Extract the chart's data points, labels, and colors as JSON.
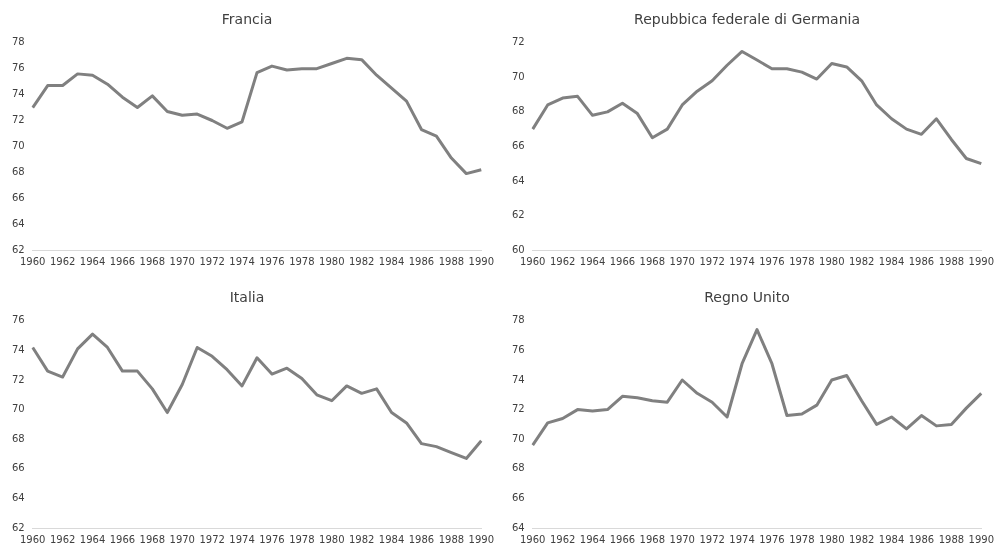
{
  "chart_data": [
    {
      "type": "line",
      "title": "Francia",
      "categories": [
        "1960",
        null,
        "1962",
        null,
        "1964",
        null,
        "1966",
        null,
        "1968",
        null,
        "1970",
        null,
        "1972",
        null,
        "1974",
        null,
        "1976",
        null,
        "1978",
        null,
        "1980",
        null,
        "1982",
        null,
        "1984",
        null,
        "1986",
        null,
        "1988",
        null,
        "1990"
      ],
      "values": [
        73.0,
        74.7,
        74.7,
        75.6,
        75.5,
        74.8,
        73.8,
        73.0,
        73.9,
        72.7,
        72.4,
        72.5,
        72.0,
        71.4,
        71.9,
        75.7,
        76.2,
        75.9,
        76.0,
        76.0,
        76.4,
        76.8,
        76.7,
        75.5,
        74.5,
        73.5,
        71.3,
        70.8,
        69.1,
        67.9,
        68.2
      ],
      "color": "#808080",
      "ylim": [
        62,
        78
      ],
      "yticks": [
        62,
        64,
        66,
        68,
        70,
        72,
        74,
        76,
        78
      ],
      "grid": false
    },
    {
      "type": "line",
      "title": "Repubbica federale di Germania",
      "categories": [
        "1960",
        null,
        "1962",
        null,
        "1964",
        null,
        "1966",
        null,
        "1968",
        null,
        "1970",
        null,
        "1972",
        null,
        "1974",
        null,
        "1976",
        null,
        "1978",
        null,
        "1980",
        null,
        "1982",
        null,
        "1984",
        null,
        "1986",
        null,
        "1988",
        null,
        "1990"
      ],
      "values": [
        67.0,
        68.4,
        68.8,
        68.9,
        67.8,
        68.0,
        68.5,
        67.9,
        66.5,
        67.0,
        68.4,
        69.2,
        69.8,
        70.7,
        71.5,
        71.0,
        70.5,
        70.5,
        70.3,
        69.9,
        70.8,
        70.6,
        69.8,
        68.4,
        67.6,
        67.0,
        66.7,
        67.6,
        66.4,
        65.3,
        65.0
      ],
      "color": "#808080",
      "ylim": [
        60,
        72
      ],
      "yticks": [
        60,
        62,
        64,
        66,
        68,
        70,
        72
      ],
      "grid": false
    },
    {
      "type": "line",
      "title": "Italia",
      "categories": [
        "1960",
        null,
        "1962",
        null,
        "1964",
        null,
        "1966",
        null,
        "1968",
        null,
        "1970",
        null,
        "1972",
        null,
        "1974",
        null,
        "1976",
        null,
        "1978",
        null,
        "1980",
        null,
        "1982",
        null,
        "1984",
        null,
        "1986",
        null,
        "1988",
        null,
        "1990"
      ],
      "values": [
        74.2,
        72.6,
        72.2,
        74.1,
        75.1,
        74.2,
        72.6,
        72.6,
        71.4,
        69.8,
        71.7,
        74.2,
        73.6,
        72.7,
        71.6,
        73.5,
        72.4,
        72.8,
        72.1,
        71.0,
        70.6,
        71.6,
        71.1,
        71.4,
        69.8,
        69.1,
        67.7,
        67.5,
        67.1,
        66.7,
        67.9
      ],
      "color": "#808080",
      "ylim": [
        62,
        76
      ],
      "yticks": [
        62,
        64,
        66,
        68,
        70,
        72,
        74,
        76
      ],
      "grid": false
    },
    {
      "type": "line",
      "title": "Regno Unito",
      "categories": [
        "1960",
        null,
        "1962",
        null,
        "1964",
        null,
        "1966",
        null,
        "1968",
        null,
        "1970",
        null,
        "1972",
        null,
        "1974",
        null,
        "1976",
        null,
        "1978",
        null,
        "1980",
        null,
        "1982",
        null,
        "1984",
        null,
        "1986",
        null,
        "1988",
        null,
        "1990"
      ],
      "values": [
        69.6,
        71.1,
        71.4,
        72.0,
        71.9,
        72.0,
        72.9,
        72.8,
        72.6,
        72.5,
        74.0,
        73.1,
        72.5,
        71.5,
        75.1,
        77.4,
        75.1,
        71.6,
        71.7,
        72.3,
        74.0,
        74.3,
        72.6,
        71.0,
        71.5,
        70.7,
        71.6,
        70.9,
        71.0,
        72.1,
        73.1
      ],
      "color": "#808080",
      "ylim": [
        64,
        78
      ],
      "yticks": [
        64,
        66,
        68,
        70,
        72,
        74,
        76,
        78
      ],
      "grid": false
    }
  ]
}
